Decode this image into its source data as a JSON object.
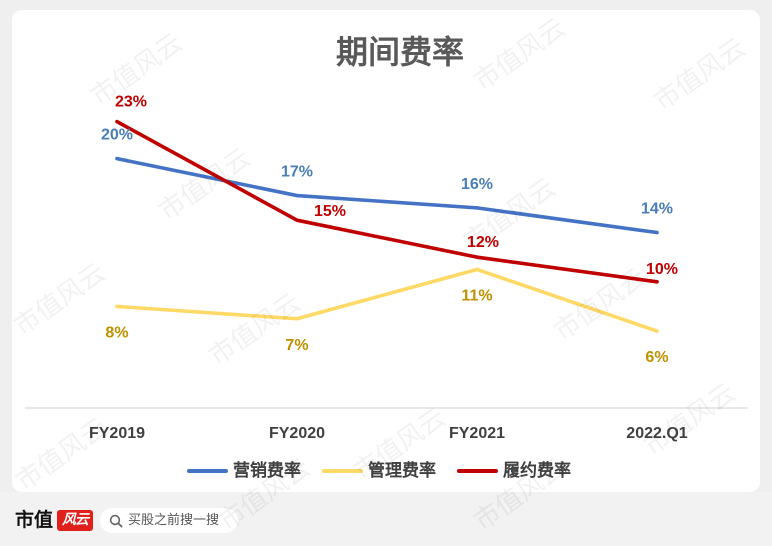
{
  "chart_data": {
    "type": "line",
    "title": "期间费率",
    "categories": [
      "FY2019",
      "FY2020",
      "FY2021",
      "2022.Q1"
    ],
    "series": [
      {
        "name": "营销费率",
        "values": [
          20,
          17,
          16,
          14
        ],
        "color": "#4472C4",
        "label_color": "#4A7EBB"
      },
      {
        "name": "管理费率",
        "values": [
          8,
          7,
          11,
          6
        ],
        "color": "#FFD966",
        "label_color": "#BF9000"
      },
      {
        "name": "履约费率",
        "values": [
          23,
          15,
          12,
          10
        ],
        "color": "#C00000",
        "label_color": "#C00000"
      }
    ],
    "value_suffix": "%",
    "ylim": [
      0,
      25
    ],
    "grid": false,
    "legend": "bottom",
    "data_labels": true
  },
  "watermark": "市值风云",
  "footer": {
    "brand_text": "市值",
    "brand_logo_text": "风云",
    "brand_logo_color": "#E0201B",
    "search_placeholder": "买股之前搜一搜",
    "search_icon": "search-icon"
  }
}
